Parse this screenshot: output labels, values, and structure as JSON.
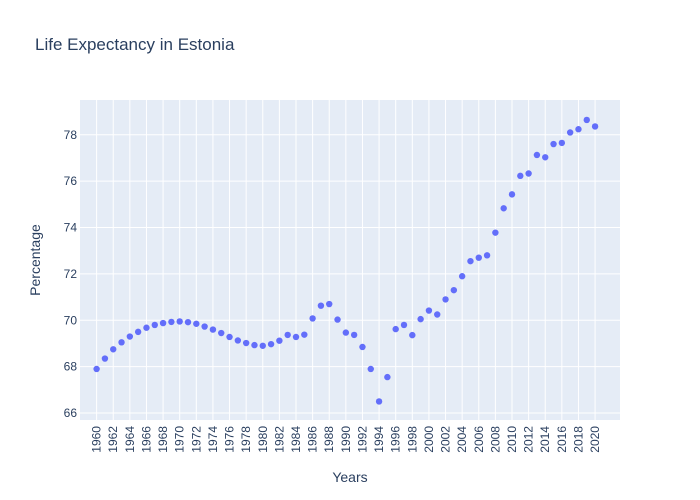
{
  "chart_data": {
    "type": "scatter",
    "title": "Life Expectancy in Estonia",
    "xlabel": "Years",
    "ylabel": "Percentage",
    "xlim": [
      1958,
      2023
    ],
    "ylim": [
      65.7,
      79.5
    ],
    "x_ticks": [
      1960,
      1962,
      1964,
      1966,
      1968,
      1970,
      1972,
      1974,
      1976,
      1978,
      1980,
      1982,
      1984,
      1986,
      1988,
      1990,
      1992,
      1994,
      1996,
      1998,
      2000,
      2002,
      2004,
      2006,
      2008,
      2010,
      2012,
      2014,
      2016,
      2018,
      2020
    ],
    "y_ticks": [
      66,
      68,
      70,
      72,
      74,
      76,
      78
    ],
    "grid": true,
    "colors": {
      "marker": "#636efa",
      "plot_bg": "#e5ecf6",
      "grid": "#ffffff",
      "text": "#2a3f5f"
    },
    "x": [
      1960,
      1961,
      1962,
      1963,
      1964,
      1965,
      1966,
      1967,
      1968,
      1969,
      1970,
      1971,
      1972,
      1973,
      1974,
      1975,
      1976,
      1977,
      1978,
      1979,
      1980,
      1981,
      1982,
      1983,
      1984,
      1985,
      1986,
      1987,
      1988,
      1989,
      1990,
      1991,
      1992,
      1993,
      1994,
      1995,
      1996,
      1997,
      1998,
      1999,
      2000,
      2001,
      2002,
      2003,
      2004,
      2005,
      2006,
      2007,
      2008,
      2009,
      2010,
      2011,
      2012,
      2013,
      2014,
      2015,
      2016,
      2017,
      2018,
      2019,
      2020
    ],
    "y": [
      67.9,
      68.35,
      68.75,
      69.05,
      69.3,
      69.5,
      69.68,
      69.8,
      69.88,
      69.93,
      69.95,
      69.92,
      69.85,
      69.73,
      69.6,
      69.45,
      69.28,
      69.13,
      69.02,
      68.93,
      68.9,
      68.97,
      69.12,
      69.37,
      69.28,
      69.38,
      70.08,
      70.63,
      70.7,
      70.03,
      69.47,
      69.37,
      68.85,
      67.9,
      66.5,
      67.55,
      69.62,
      69.8,
      69.36,
      70.05,
      70.42,
      70.25,
      70.9,
      71.3,
      71.9,
      72.55,
      72.7,
      72.8,
      73.78,
      74.83,
      75.43,
      76.23,
      76.33,
      77.13,
      77.03,
      77.6,
      77.65,
      78.1,
      78.24,
      78.64,
      78.36
    ]
  }
}
